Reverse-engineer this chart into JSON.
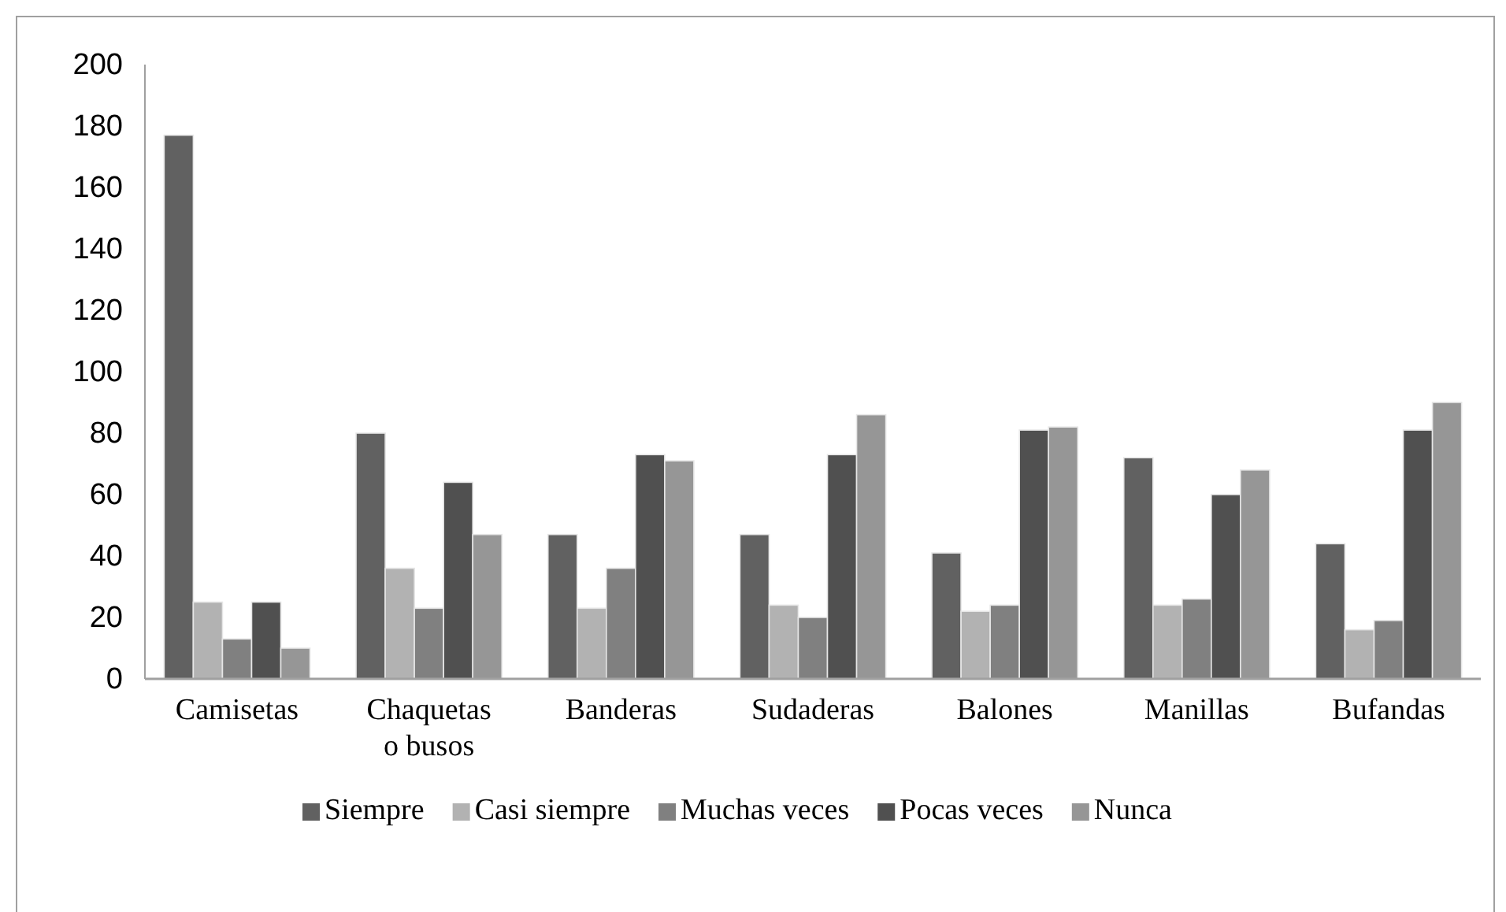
{
  "chart_data": {
    "type": "bar",
    "categories": [
      "Camisetas",
      "Chaquetas o busos",
      "Banderas",
      "Sudaderas",
      "Balones",
      "Manillas",
      "Bufandas"
    ],
    "series": [
      {
        "name": "Siempre",
        "color": "#616161",
        "values": [
          177,
          80,
          47,
          47,
          41,
          72,
          44
        ]
      },
      {
        "name": "Casi siempre",
        "color": "#b2b2b2",
        "values": [
          25,
          36,
          23,
          24,
          22,
          24,
          16
        ]
      },
      {
        "name": "Muchas veces",
        "color": "#808080",
        "values": [
          13,
          23,
          36,
          20,
          24,
          26,
          19
        ]
      },
      {
        "name": "Pocas veces",
        "color": "#505050",
        "values": [
          25,
          64,
          73,
          73,
          81,
          60,
          81
        ]
      },
      {
        "name": "Nunca",
        "color": "#969696",
        "values": [
          10,
          47,
          71,
          86,
          82,
          68,
          90
        ]
      }
    ],
    "ylim": [
      0,
      200
    ],
    "yticks": [
      0,
      20,
      40,
      60,
      80,
      100,
      120,
      140,
      160,
      180,
      200
    ],
    "grid": false,
    "legend": "bottom"
  }
}
